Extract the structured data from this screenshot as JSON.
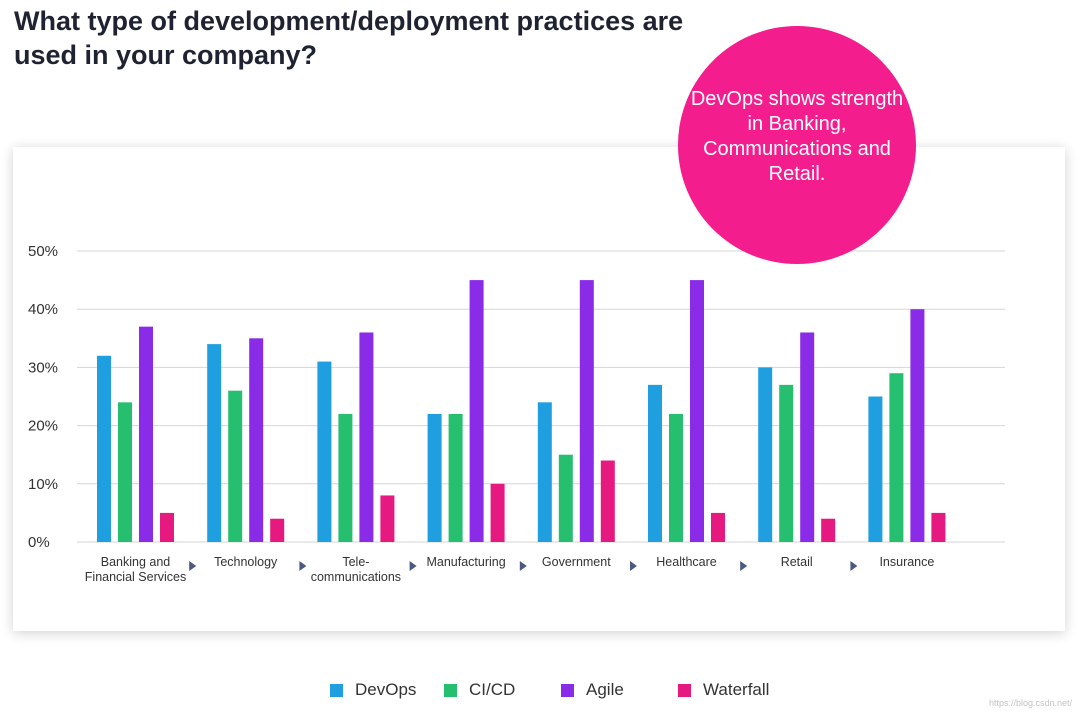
{
  "title": "What type of development/deployment practices are used in your company?",
  "callout": "DevOps shows strength in Banking, Communications and Retail.",
  "watermark": "https://blog.csdn.net/",
  "colors": {
    "DevOps": "#1f9ee0",
    "CI/CD": "#26bf6f",
    "Agile": "#8a2be8",
    "Waterfall": "#e5197f",
    "callout": "#f41d8d",
    "arrow": "#4b5a82"
  },
  "chart_data": {
    "type": "bar",
    "title": "What type of development/deployment practices are used in your company?",
    "xlabel": "",
    "ylabel": "",
    "ylim": [
      0,
      50
    ],
    "yticks": [
      "0%",
      "10%",
      "20%",
      "30%",
      "40%",
      "50%"
    ],
    "grid": true,
    "legend_position": "bottom",
    "categories": [
      [
        "Banking and",
        "Financial Services"
      ],
      [
        "Technology"
      ],
      [
        "Tele-",
        "communications"
      ],
      [
        "Manufacturing"
      ],
      [
        "Government"
      ],
      [
        "Healthcare"
      ],
      [
        "Retail"
      ],
      [
        "Insurance"
      ]
    ],
    "series": [
      {
        "name": "DevOps",
        "values": [
          32,
          34,
          31,
          22,
          24,
          27,
          30,
          25
        ]
      },
      {
        "name": "CI/CD",
        "values": [
          24,
          26,
          22,
          22,
          15,
          22,
          27,
          29
        ]
      },
      {
        "name": "Agile",
        "values": [
          37,
          35,
          36,
          45,
          45,
          45,
          36,
          40
        ]
      },
      {
        "name": "Waterfall",
        "values": [
          5,
          4,
          8,
          10,
          14,
          5,
          4,
          5
        ]
      }
    ]
  }
}
